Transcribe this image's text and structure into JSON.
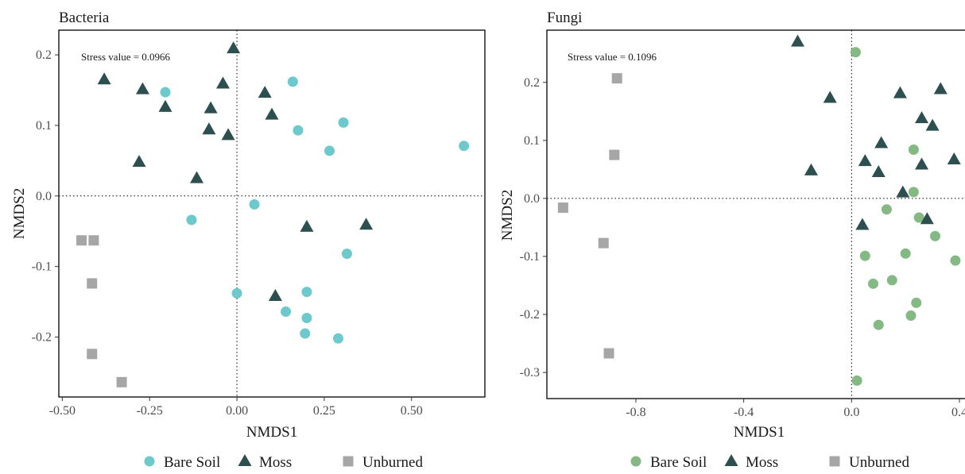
{
  "chart_data": [
    {
      "type": "scatter",
      "title": "Bacteria",
      "xlabel": "NMDS1",
      "ylabel": "NMDS2",
      "xlim": [
        -0.51,
        0.71
      ],
      "ylim": [
        -0.285,
        0.235
      ],
      "x_ticks": [
        -0.5,
        -0.25,
        0.0,
        0.25,
        0.5
      ],
      "x_tick_labels": [
        "-0.50",
        "-0.25",
        "0.00",
        "0.25",
        "0.50"
      ],
      "y_ticks": [
        -0.2,
        -0.1,
        0.0,
        0.1,
        0.2
      ],
      "y_tick_labels": [
        "-0.2",
        "-0.1",
        "0.0",
        "0.1",
        "0.2"
      ],
      "annotation": "Stress value = 0.0966",
      "reference_lines": {
        "x": 0,
        "y": 0
      },
      "series": [
        {
          "name": "Bare Soil",
          "marker": "circle",
          "color": "#6ec9cc",
          "x": [
            -0.205,
            0.16,
            0.175,
            0.305,
            0.265,
            0.65,
            0.05,
            -0.13,
            0.315,
            0.0,
            0.2,
            0.14,
            0.2,
            0.195,
            0.29
          ],
          "y": [
            0.147,
            0.162,
            0.093,
            0.104,
            0.064,
            0.071,
            -0.012,
            -0.034,
            -0.082,
            -0.138,
            -0.136,
            -0.164,
            -0.173,
            -0.195,
            -0.202
          ]
        },
        {
          "name": "Moss",
          "marker": "triangle",
          "color": "#2d4f4f",
          "x": [
            -0.01,
            -0.38,
            -0.27,
            -0.04,
            0.08,
            -0.205,
            -0.075,
            0.1,
            -0.08,
            -0.025,
            -0.28,
            -0.115,
            0.2,
            0.37,
            0.11
          ],
          "y": [
            0.209,
            0.165,
            0.151,
            0.159,
            0.146,
            0.126,
            0.124,
            0.115,
            0.094,
            0.086,
            0.048,
            0.025,
            -0.044,
            -0.041,
            -0.142
          ]
        },
        {
          "name": "Unburned",
          "marker": "square",
          "color": "#a6a6a6",
          "x": [
            -0.445,
            -0.41,
            -0.415,
            -0.415,
            -0.33
          ],
          "y": [
            -0.063,
            -0.063,
            -0.124,
            -0.224,
            -0.264
          ]
        }
      ],
      "legend": {
        "position": "bottom"
      }
    },
    {
      "type": "scatter",
      "title": "Fungi",
      "xlabel": "NMDS1",
      "ylabel": "NMDS2",
      "xlim": [
        -1.13,
        0.45
      ],
      "ylim": [
        -0.345,
        0.29
      ],
      "x_ticks": [
        -0.8,
        -0.4,
        0.0,
        0.4
      ],
      "x_tick_labels": [
        "-0.8",
        "-0.4",
        "0.0",
        "0.4"
      ],
      "y_ticks": [
        -0.3,
        -0.2,
        -0.1,
        0.0,
        0.1,
        0.2
      ],
      "y_tick_labels": [
        "-0.3",
        "-0.2",
        "-0.1",
        "0.0",
        "0.1",
        "0.2"
      ],
      "annotation": "Stress value = 0.1096",
      "reference_lines": {
        "x": 0,
        "y": 0
      },
      "series": [
        {
          "name": "Bare Soil",
          "marker": "circle",
          "color": "#84b984",
          "x": [
            0.015,
            0.23,
            0.23,
            0.13,
            0.25,
            0.31,
            0.05,
            0.2,
            0.385,
            0.08,
            0.15,
            0.24,
            0.22,
            0.1,
            0.02
          ],
          "y": [
            0.252,
            0.084,
            0.011,
            -0.019,
            -0.033,
            -0.065,
            -0.099,
            -0.095,
            -0.107,
            -0.147,
            -0.141,
            -0.18,
            -0.202,
            -0.218,
            -0.314
          ]
        },
        {
          "name": "Moss",
          "marker": "triangle",
          "color": "#2d4f4f",
          "x": [
            -0.2,
            -0.08,
            0.18,
            0.33,
            0.26,
            0.3,
            0.11,
            0.05,
            0.38,
            0.1,
            0.26,
            -0.15,
            0.19,
            0.28,
            0.04
          ],
          "y": [
            0.27,
            0.173,
            0.181,
            0.188,
            0.138,
            0.125,
            0.095,
            0.064,
            0.067,
            0.045,
            0.058,
            0.048,
            0.01,
            -0.036,
            -0.046
          ]
        },
        {
          "name": "Unburned",
          "marker": "square",
          "color": "#a6a6a6",
          "x": [
            -0.87,
            -0.88,
            -1.07,
            -0.92,
            -0.9
          ],
          "y": [
            0.207,
            0.075,
            -0.016,
            -0.077,
            -0.267
          ]
        }
      ],
      "legend": {
        "position": "bottom"
      }
    }
  ]
}
